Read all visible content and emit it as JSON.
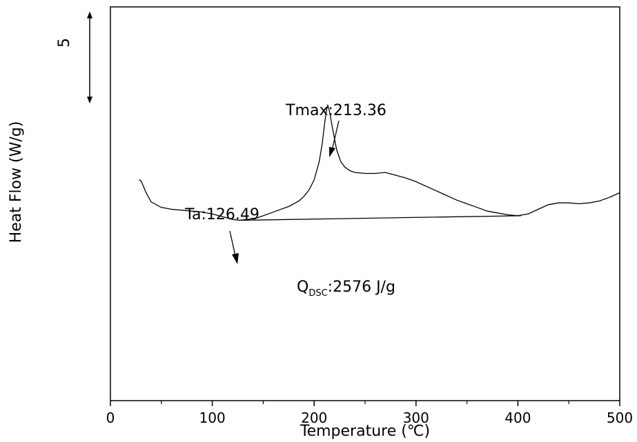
{
  "chart_data": {
    "type": "line",
    "title": "",
    "xlabel": "Temperature (℃)",
    "ylabel": "Heat Flow (W/g)",
    "xlim": [
      0,
      500
    ],
    "ylim": [
      -13.2,
      8.2
    ],
    "xticks": [
      0,
      100,
      200,
      300,
      400,
      500
    ],
    "xtick_labels": [
      "0",
      "100",
      "200",
      "300",
      "400",
      "500"
    ],
    "y_tick_labels_shown": false,
    "grid": false,
    "scale_bar": {
      "label": "5",
      "from": 2.95,
      "to": 7.95
    },
    "series": [
      {
        "x": [
          28,
          30,
          32,
          35,
          40,
          50,
          60,
          70,
          80,
          90,
          100,
          110,
          120,
          126.49,
          135,
          145,
          155,
          165,
          175,
          185,
          190,
          195,
          200,
          205,
          208,
          210,
          212,
          213.36,
          215,
          218,
          222,
          226,
          230,
          235,
          240,
          250,
          260,
          270,
          280,
          290,
          300,
          310,
          320,
          330,
          340,
          350,
          360,
          370,
          380,
          390,
          400,
          405,
          410,
          420,
          430,
          440,
          450,
          460,
          470,
          480,
          490,
          500
        ],
        "y": [
          -1.2,
          -1.25,
          -1.5,
          -1.9,
          -2.4,
          -2.7,
          -2.8,
          -2.85,
          -2.9,
          -2.95,
          -3.05,
          -3.2,
          -3.35,
          -3.4,
          -3.35,
          -3.25,
          -3.05,
          -2.85,
          -2.65,
          -2.35,
          -2.1,
          -1.75,
          -1.2,
          -0.2,
          0.8,
          1.75,
          2.55,
          2.85,
          2.55,
          1.6,
          0.45,
          -0.2,
          -0.5,
          -0.7,
          -0.8,
          -0.85,
          -0.85,
          -0.8,
          -0.95,
          -1.1,
          -1.3,
          -1.55,
          -1.8,
          -2.05,
          -2.3,
          -2.5,
          -2.7,
          -2.9,
          -3.0,
          -3.1,
          -3.15,
          -3.1,
          -3.05,
          -2.8,
          -2.55,
          -2.45,
          -2.45,
          -2.5,
          -2.45,
          -2.35,
          -2.15,
          -1.9
        ]
      }
    ],
    "baseline": {
      "x": [
        126.49,
        403
      ],
      "y": [
        -3.4,
        -3.15
      ]
    },
    "annotations": [
      {
        "text": "Tmax:213.36",
        "x": 213.36,
        "y": 2.85
      },
      {
        "text": "Ta:126.49",
        "x": 126.49,
        "y": -3.4
      },
      {
        "text_main": "Q",
        "text_sub": "DSC",
        "text_rest": ":2576 J/g"
      }
    ]
  }
}
